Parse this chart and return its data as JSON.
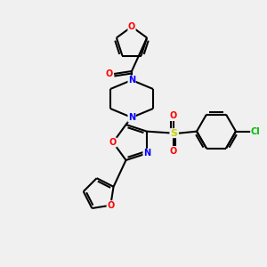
{
  "bg_color": "#f0f0f0",
  "bond_color": "#000000",
  "atom_colors": {
    "O": "#ff0000",
    "N": "#0000ff",
    "S": "#cccc00",
    "Cl": "#00bb00",
    "C": "#000000"
  },
  "figsize": [
    3.0,
    3.0
  ],
  "dpi": 100,
  "lw": 1.5
}
